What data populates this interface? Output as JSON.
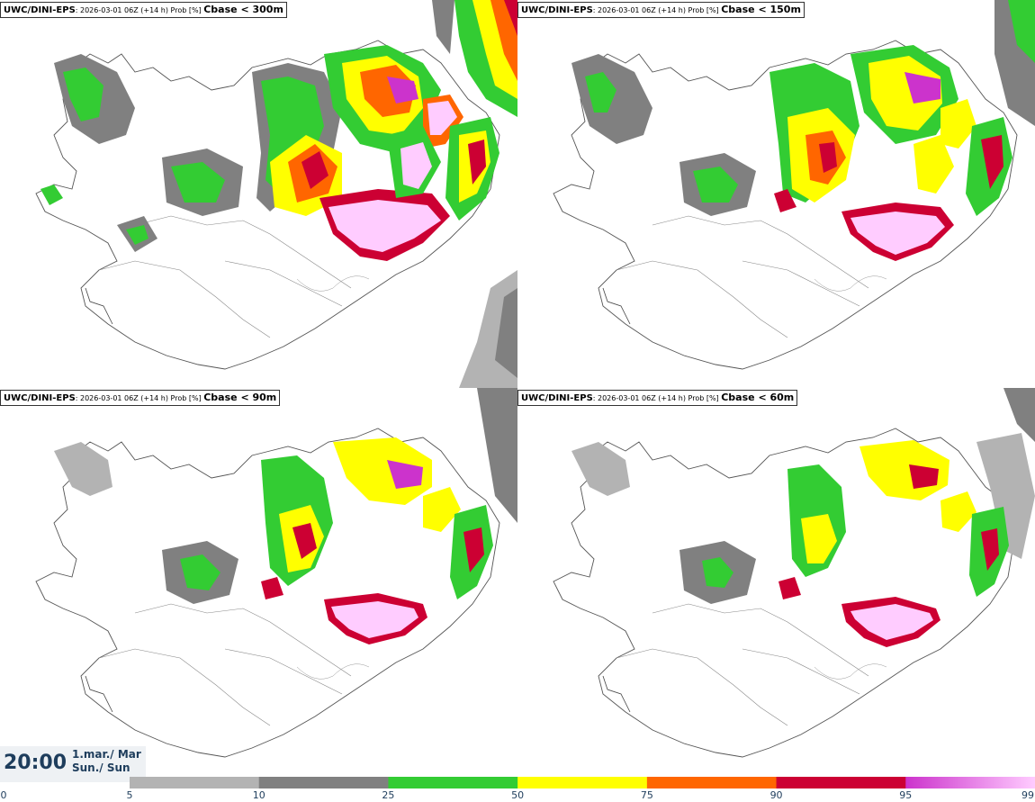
{
  "panels": [
    {
      "model": "UWC/DINI-EPS",
      "meta": ": 2026-03-01 06Z (+14 h) Prob [%] ",
      "threshold": "Cbase < 300m"
    },
    {
      "model": "UWC/DINI-EPS",
      "meta": ": 2026-03-01 06Z (+14 h) Prob [%] ",
      "threshold": "Cbase < 150m"
    },
    {
      "model": "UWC/DINI-EPS",
      "meta": ": 2026-03-01 06Z (+14 h) Prob [%] ",
      "threshold": "Cbase < 90m"
    },
    {
      "model": "UWC/DINI-EPS",
      "meta": ": 2026-03-01 06Z (+14 h) Prob [%] ",
      "threshold": "Cbase < 60m"
    }
  ],
  "valid_time": {
    "time": "20:00",
    "date_line": "1.mar./ Mar",
    "day_line": "Sun./ Sun"
  },
  "legend": {
    "labels": [
      "0",
      "5",
      "10",
      "25",
      "50",
      "75",
      "90",
      "95",
      "99"
    ],
    "bins": [
      {
        "from": 5,
        "to": 10,
        "color": "#b3b3b3"
      },
      {
        "from": 10,
        "to": 25,
        "color": "#808080"
      },
      {
        "from": 25,
        "to": 50,
        "color": "#33cc33"
      },
      {
        "from": 50,
        "to": 75,
        "color": "#ffff00"
      },
      {
        "from": 75,
        "to": 90,
        "color": "#ff6600"
      },
      {
        "from": 90,
        "to": 95,
        "color": "#cc0033"
      },
      {
        "from": 95,
        "to": 99,
        "color": "#cc33cc",
        "to_color": "#ffccff"
      }
    ]
  }
}
